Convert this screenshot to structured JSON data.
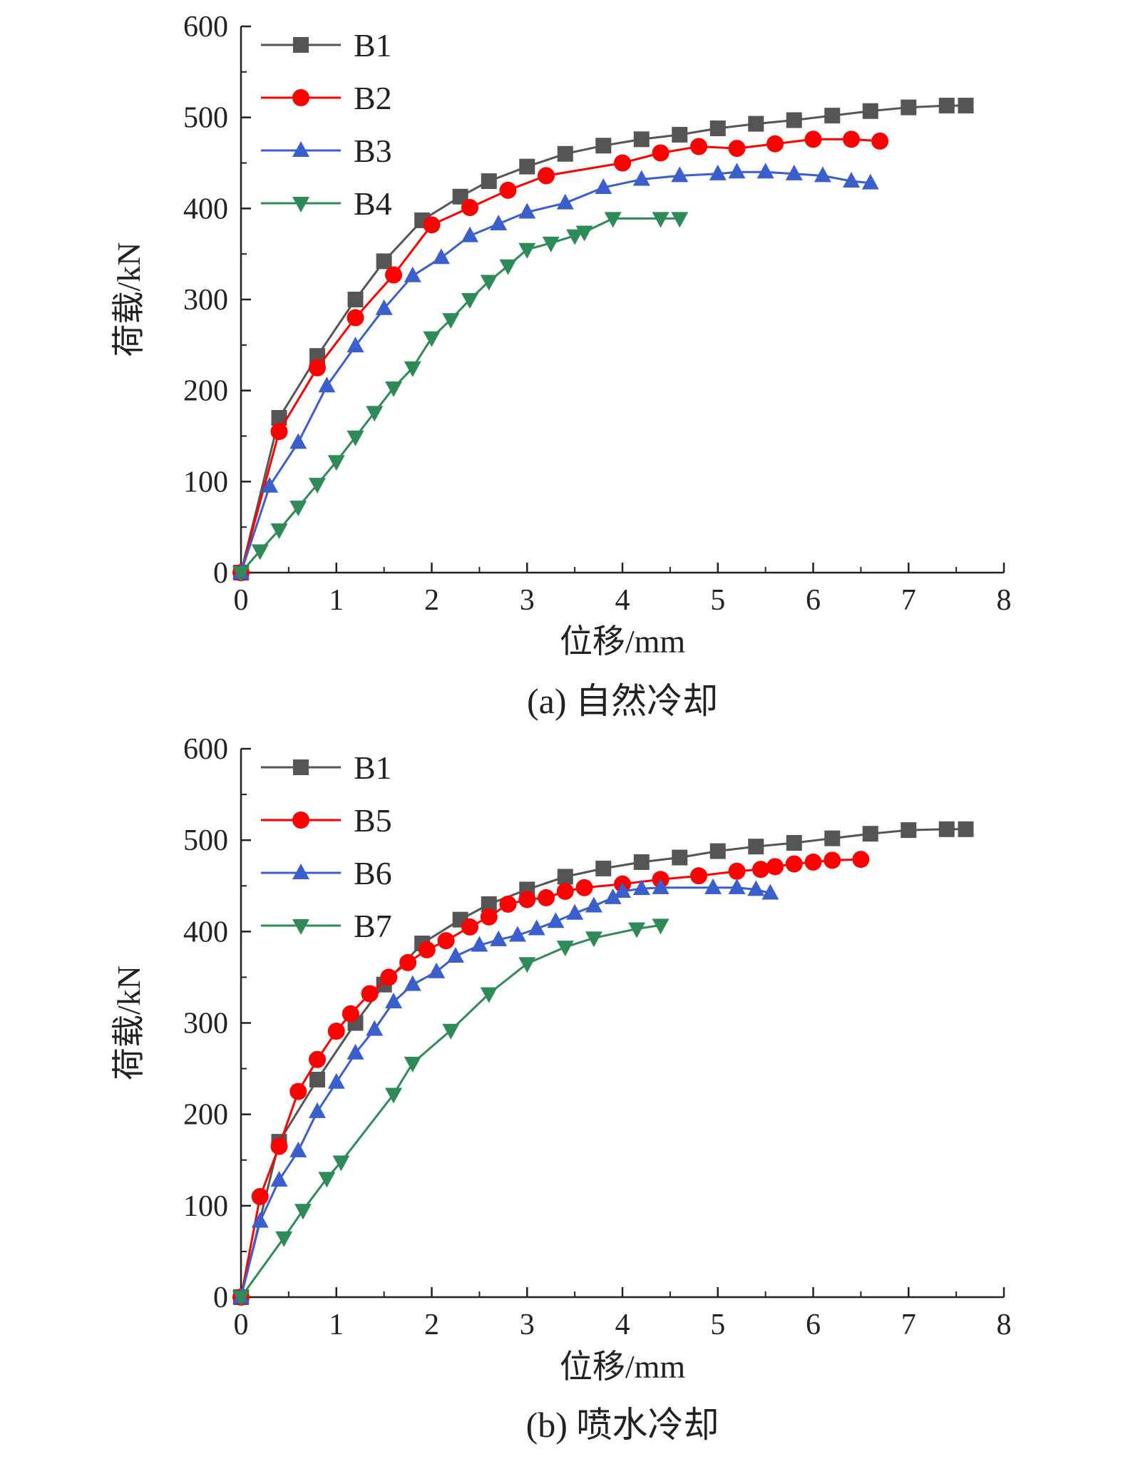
{
  "chart_data": [
    {
      "type": "line",
      "caption": "(a) 自然冷却",
      "xlabel": "位移/mm",
      "ylabel": "荷载/kN",
      "xlim": [
        0,
        8
      ],
      "ylim": [
        0,
        600
      ],
      "xticks": [
        "0",
        "1",
        "2",
        "3",
        "4",
        "5",
        "6",
        "7",
        "8"
      ],
      "yticks": [
        "0",
        "100",
        "200",
        "300",
        "400",
        "500",
        "600"
      ],
      "legend_position": "top-left",
      "grid": false,
      "series": [
        {
          "name": "B1",
          "color": "#555555",
          "marker": "square",
          "points": [
            [
              0,
              0
            ],
            [
              0.4,
              170
            ],
            [
              0.8,
              238
            ],
            [
              1.2,
              300
            ],
            [
              1.5,
              342
            ],
            [
              1.9,
              387
            ],
            [
              2.3,
              413
            ],
            [
              2.6,
              430
            ],
            [
              3.0,
              446
            ],
            [
              3.4,
              460
            ],
            [
              3.8,
              469
            ],
            [
              4.2,
              476
            ],
            [
              4.6,
              481
            ],
            [
              5.0,
              488
            ],
            [
              5.4,
              493
            ],
            [
              5.8,
              497
            ],
            [
              6.2,
              502
            ],
            [
              6.6,
              507
            ],
            [
              7.0,
              511
            ],
            [
              7.4,
              513
            ],
            [
              7.6,
              513
            ]
          ]
        },
        {
          "name": "B2",
          "color": "#ff0000",
          "marker": "circle",
          "points": [
            [
              0,
              0
            ],
            [
              0.4,
              155
            ],
            [
              0.8,
              225
            ],
            [
              1.2,
              280
            ],
            [
              1.6,
              327
            ],
            [
              2.0,
              382
            ],
            [
              2.4,
              401
            ],
            [
              2.8,
              420
            ],
            [
              3.2,
              436
            ],
            [
              4.0,
              450
            ],
            [
              4.4,
              461
            ],
            [
              4.8,
              468
            ],
            [
              5.2,
              466
            ],
            [
              5.6,
              471
            ],
            [
              6.0,
              476
            ],
            [
              6.4,
              476
            ],
            [
              6.7,
              474
            ]
          ]
        },
        {
          "name": "B3",
          "color": "#3a5fcd",
          "marker": "triangle-up",
          "points": [
            [
              0,
              0
            ],
            [
              0.3,
              95
            ],
            [
              0.6,
              143
            ],
            [
              0.9,
              205
            ],
            [
              1.2,
              249
            ],
            [
              1.5,
              290
            ],
            [
              1.8,
              326
            ],
            [
              2.1,
              346
            ],
            [
              2.4,
              370
            ],
            [
              2.7,
              383
            ],
            [
              3.0,
              396
            ],
            [
              3.4,
              406
            ],
            [
              3.8,
              423
            ],
            [
              4.2,
              432
            ],
            [
              4.6,
              436
            ],
            [
              5.0,
              438
            ],
            [
              5.2,
              440
            ],
            [
              5.5,
              440
            ],
            [
              5.8,
              438
            ],
            [
              6.1,
              436
            ],
            [
              6.4,
              430
            ],
            [
              6.6,
              428
            ]
          ]
        },
        {
          "name": "B4",
          "color": "#2e8b57",
          "marker": "triangle-down",
          "points": [
            [
              0,
              0
            ],
            [
              0.2,
              24
            ],
            [
              0.4,
              47
            ],
            [
              0.6,
              72
            ],
            [
              0.8,
              97
            ],
            [
              1.0,
              122
            ],
            [
              1.2,
              149
            ],
            [
              1.4,
              176
            ],
            [
              1.6,
              203
            ],
            [
              1.8,
              225
            ],
            [
              2.0,
              258
            ],
            [
              2.2,
              278
            ],
            [
              2.4,
              300
            ],
            [
              2.6,
              320
            ],
            [
              2.8,
              337
            ],
            [
              3.0,
              355
            ],
            [
              3.25,
              362
            ],
            [
              3.5,
              370
            ],
            [
              3.6,
              374
            ],
            [
              3.9,
              389
            ],
            [
              4.4,
              389
            ],
            [
              4.6,
              389
            ]
          ]
        }
      ]
    },
    {
      "type": "line",
      "caption": "(b) 喷水冷却",
      "xlabel": "位移/mm",
      "ylabel": "荷载/kN",
      "xlim": [
        0,
        8
      ],
      "ylim": [
        0,
        600
      ],
      "xticks": [
        "0",
        "1",
        "2",
        "3",
        "4",
        "5",
        "6",
        "7",
        "8"
      ],
      "yticks": [
        "0",
        "100",
        "200",
        "300",
        "400",
        "500",
        "600"
      ],
      "legend_position": "top-left",
      "grid": false,
      "series": [
        {
          "name": "B1",
          "color": "#555555",
          "marker": "square",
          "points": [
            [
              0,
              0
            ],
            [
              0.4,
              170
            ],
            [
              0.8,
              238
            ],
            [
              1.2,
              300
            ],
            [
              1.5,
              342
            ],
            [
              1.9,
              387
            ],
            [
              2.3,
              413
            ],
            [
              2.6,
              430
            ],
            [
              3.0,
              446
            ],
            [
              3.4,
              460
            ],
            [
              3.8,
              469
            ],
            [
              4.2,
              476
            ],
            [
              4.6,
              481
            ],
            [
              5.0,
              488
            ],
            [
              5.4,
              493
            ],
            [
              5.8,
              497
            ],
            [
              6.2,
              502
            ],
            [
              6.6,
              507
            ],
            [
              7.0,
              511
            ],
            [
              7.4,
              512
            ],
            [
              7.6,
              512
            ]
          ]
        },
        {
          "name": "B5",
          "color": "#ff0000",
          "marker": "circle",
          "points": [
            [
              0,
              0
            ],
            [
              0.2,
              110
            ],
            [
              0.4,
              165
            ],
            [
              0.6,
              225
            ],
            [
              0.8,
              260
            ],
            [
              1.0,
              291
            ],
            [
              1.15,
              310
            ],
            [
              1.35,
              332
            ],
            [
              1.55,
              350
            ],
            [
              1.75,
              366
            ],
            [
              1.95,
              380
            ],
            [
              2.15,
              390
            ],
            [
              2.4,
              405
            ],
            [
              2.6,
              416
            ],
            [
              2.8,
              430
            ],
            [
              3.0,
              435
            ],
            [
              3.2,
              437
            ],
            [
              3.4,
              444
            ],
            [
              3.6,
              448
            ],
            [
              4.0,
              452
            ],
            [
              4.4,
              457
            ],
            [
              4.8,
              461
            ],
            [
              5.2,
              466
            ],
            [
              5.45,
              468
            ],
            [
              5.6,
              471
            ],
            [
              5.8,
              474
            ],
            [
              6.0,
              476
            ],
            [
              6.2,
              478
            ],
            [
              6.5,
              479
            ]
          ]
        },
        {
          "name": "B6",
          "color": "#3a5fcd",
          "marker": "triangle-up",
          "points": [
            [
              0,
              0
            ],
            [
              0.2,
              83
            ],
            [
              0.4,
              128
            ],
            [
              0.6,
              160
            ],
            [
              0.8,
              203
            ],
            [
              1.0,
              235
            ],
            [
              1.2,
              267
            ],
            [
              1.4,
              293
            ],
            [
              1.6,
              323
            ],
            [
              1.8,
              342
            ],
            [
              2.05,
              356
            ],
            [
              2.25,
              373
            ],
            [
              2.5,
              385
            ],
            [
              2.7,
              391
            ],
            [
              2.9,
              396
            ],
            [
              3.1,
              403
            ],
            [
              3.3,
              411
            ],
            [
              3.5,
              420
            ],
            [
              3.7,
              428
            ],
            [
              3.9,
              437
            ],
            [
              4.0,
              444
            ],
            [
              4.2,
              447
            ],
            [
              4.4,
              448
            ],
            [
              4.95,
              448
            ],
            [
              5.2,
              448
            ],
            [
              5.4,
              446
            ],
            [
              5.55,
              442
            ]
          ]
        },
        {
          "name": "B7",
          "color": "#2e8b57",
          "marker": "triangle-down",
          "points": [
            [
              0,
              0
            ],
            [
              0.45,
              65
            ],
            [
              0.65,
              95
            ],
            [
              0.9,
              130
            ],
            [
              1.05,
              148
            ],
            [
              1.6,
              222
            ],
            [
              1.8,
              256
            ],
            [
              2.2,
              292
            ],
            [
              2.6,
              332
            ],
            [
              3.0,
              365
            ],
            [
              3.4,
              383
            ],
            [
              3.7,
              393
            ],
            [
              4.15,
              403
            ],
            [
              4.4,
              407
            ]
          ]
        }
      ]
    }
  ]
}
